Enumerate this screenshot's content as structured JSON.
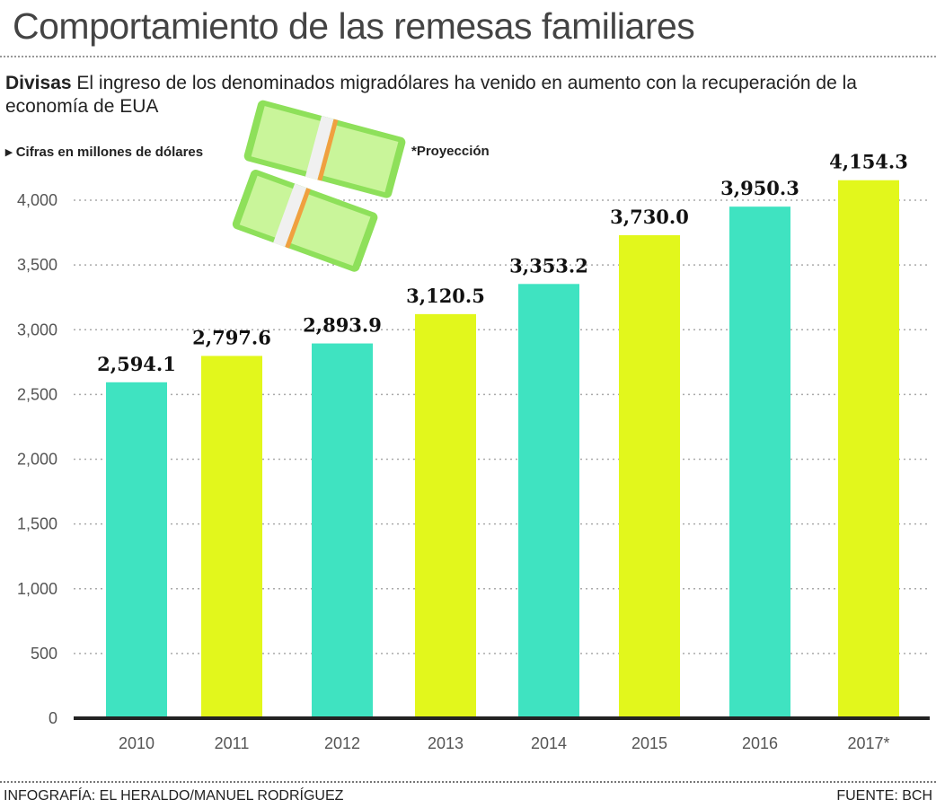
{
  "title": "Comportamiento de las remesas familiares",
  "subtitle_bold": "Divisas",
  "subtitle": "El ingreso de los denominados migradólares ha venido en aumento con la recuperación de la economía de EUA",
  "note_units": "Cifras en millones de dólares",
  "note_projection": "*Proyección",
  "credit": "INFOGRAFÍA: EL HERALDO/MANUEL RODRÍGUEZ",
  "source": "FUENTE: BCH",
  "colors": {
    "teal": "#3fe3c1",
    "yellow": "#e2f71c"
  },
  "chart_data": {
    "type": "bar",
    "title": "Comportamiento de las remesas familiares",
    "ylabel": "Cifras en millones de dólares",
    "categories": [
      "2010",
      "2011",
      "2012",
      "2013",
      "2014",
      "2015",
      "2016",
      "2017*"
    ],
    "values": [
      2594.1,
      2797.6,
      2893.9,
      3120.5,
      3353.2,
      3730.0,
      3950.3,
      4154.3
    ],
    "value_labels": [
      "2,594.1",
      "2,797.6",
      "2,893.9",
      "3,120.5",
      "3,353.2",
      "3,730.0",
      "3,950.3",
      "4,154.3"
    ],
    "yticks": [
      0,
      500,
      1000,
      1500,
      2000,
      2500,
      3000,
      3500,
      4000
    ],
    "ytick_labels": [
      "0",
      "500",
      "1,000",
      "1,500",
      "2,000",
      "2,500",
      "3,000",
      "3,500",
      "4,000"
    ],
    "ylim": [
      0,
      4000
    ],
    "grid": true
  }
}
